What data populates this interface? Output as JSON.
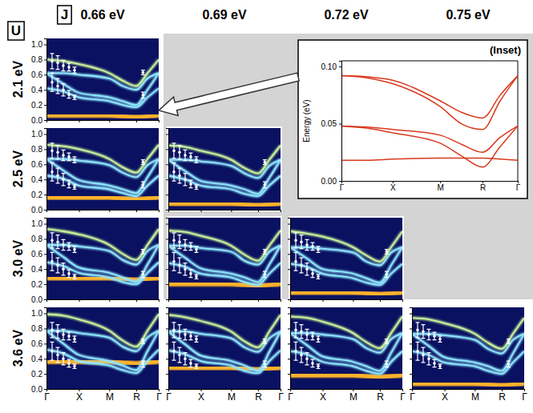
{
  "chart_data": {
    "type": "panel_grid",
    "column_title": "J",
    "row_title": "U",
    "columns": [
      "0.66 eV",
      "0.69 eV",
      "0.72 eV",
      "0.75 eV"
    ],
    "x": [
      0,
      0.15,
      0.29,
      0.56,
      0.68,
      0.8,
      0.9,
      1.0
    ],
    "xlim": [
      0,
      1
    ],
    "xticks": [
      {
        "value": 0,
        "label": "Γ"
      },
      {
        "value": 0.29,
        "label": "X"
      },
      {
        "value": 0.56,
        "label": "M"
      },
      {
        "value": 0.8,
        "label": "R"
      },
      {
        "value": 1,
        "label": "Γ"
      }
    ],
    "ylim": [
      0,
      1.08
    ],
    "yticks": [
      {
        "value": 0,
        "label": "0.0"
      },
      {
        "value": 0.2,
        "label": "0.2"
      },
      {
        "value": 0.4,
        "label": "0.4"
      },
      {
        "value": 0.6,
        "label": "0.6"
      },
      {
        "value": 0.8,
        "label": "0.8"
      },
      {
        "value": 1,
        "label": "1.0"
      }
    ],
    "experiment": {
      "color": "#ffffff",
      "marker": "circle",
      "x": [
        0.05,
        0.05,
        0.1,
        0.1,
        0.15,
        0.15,
        0.2,
        0.2,
        0.25,
        0.25,
        0.86,
        0.86
      ],
      "values": [
        0.78,
        0.5,
        0.76,
        0.45,
        0.72,
        0.4,
        0.7,
        0.34,
        0.66,
        0.3,
        0.63,
        0.33
      ],
      "errors": [
        0.1,
        0.12,
        0.09,
        0.1,
        0.07,
        0.08,
        0.05,
        0.05,
        0.04,
        0.03,
        0.03,
        0.04
      ]
    },
    "rows": [
      {
        "label": "2.1 eV",
        "panels": [
          {
            "series": [
              {
                "color": "#ffb229",
                "values": [
                  0.06,
                  0.06,
                  0.06,
                  0.06,
                  0.05,
                  0.04,
                  0.05,
                  0.06
                ]
              },
              {
                "color": "#8fe6ff",
                "values": [
                  0.42,
                  0.38,
                  0.3,
                  0.25,
                  0.2,
                  0.17,
                  0.3,
                  0.42
                ]
              },
              {
                "color": "#8fe6ff",
                "values": [
                  0.62,
                  0.48,
                  0.36,
                  0.3,
                  0.25,
                  0.2,
                  0.4,
                  0.62
                ]
              },
              {
                "color": "#8fe6ff",
                "values": [
                  0.62,
                  0.62,
                  0.6,
                  0.55,
                  0.45,
                  0.4,
                  0.55,
                  0.62
                ]
              },
              {
                "color": "#c8f29a",
                "values": [
                  0.8,
                  0.78,
                  0.74,
                  0.62,
                  0.52,
                  0.45,
                  0.62,
                  0.8
                ]
              }
            ]
          }
        ]
      },
      {
        "label": "2.5 eV",
        "panels": [
          {
            "series": [
              {
                "color": "#ffb229",
                "values": [
                  0.16,
                  0.16,
                  0.16,
                  0.16,
                  0.15,
                  0.14,
                  0.15,
                  0.16
                ]
              },
              {
                "color": "#8fe6ff",
                "values": [
                  0.45,
                  0.41,
                  0.32,
                  0.27,
                  0.22,
                  0.18,
                  0.32,
                  0.45
                ]
              },
              {
                "color": "#8fe6ff",
                "values": [
                  0.67,
                  0.52,
                  0.39,
                  0.32,
                  0.27,
                  0.22,
                  0.43,
                  0.67
                ]
              },
              {
                "color": "#8fe6ff",
                "values": [
                  0.67,
                  0.67,
                  0.65,
                  0.59,
                  0.49,
                  0.43,
                  0.59,
                  0.67
                ]
              },
              {
                "color": "#c8f29a",
                "values": [
                  0.86,
                  0.84,
                  0.8,
                  0.67,
                  0.56,
                  0.49,
                  0.67,
                  0.86
                ]
              }
            ]
          },
          {
            "series": [
              {
                "color": "#ffb229",
                "values": [
                  0.08,
                  0.08,
                  0.08,
                  0.08,
                  0.07,
                  0.06,
                  0.07,
                  0.08
                ]
              },
              {
                "color": "#8fe6ff",
                "values": [
                  0.45,
                  0.4,
                  0.32,
                  0.27,
                  0.21,
                  0.18,
                  0.32,
                  0.45
                ]
              },
              {
                "color": "#8fe6ff",
                "values": [
                  0.66,
                  0.51,
                  0.38,
                  0.32,
                  0.27,
                  0.21,
                  0.42,
                  0.66
                ]
              },
              {
                "color": "#8fe6ff",
                "values": [
                  0.66,
                  0.66,
                  0.64,
                  0.58,
                  0.48,
                  0.42,
                  0.58,
                  0.66
                ]
              },
              {
                "color": "#c8f29a",
                "values": [
                  0.85,
                  0.83,
                  0.78,
                  0.66,
                  0.55,
                  0.48,
                  0.66,
                  0.85
                ]
              }
            ]
          }
        ]
      },
      {
        "label": "3.0 eV",
        "panels": [
          {
            "series": [
              {
                "color": "#ffb229",
                "values": [
                  0.28,
                  0.28,
                  0.28,
                  0.28,
                  0.27,
                  0.26,
                  0.27,
                  0.28
                ]
              },
              {
                "color": "#8fe6ff",
                "values": [
                  0.49,
                  0.44,
                  0.35,
                  0.29,
                  0.23,
                  0.2,
                  0.35,
                  0.49
                ]
              },
              {
                "color": "#8fe6ff",
                "values": [
                  0.72,
                  0.56,
                  0.42,
                  0.35,
                  0.29,
                  0.23,
                  0.46,
                  0.72
                ]
              },
              {
                "color": "#8fe6ff",
                "values": [
                  0.72,
                  0.72,
                  0.7,
                  0.64,
                  0.52,
                  0.46,
                  0.64,
                  0.72
                ]
              },
              {
                "color": "#c8f29a",
                "values": [
                  0.93,
                  0.9,
                  0.86,
                  0.72,
                  0.6,
                  0.52,
                  0.72,
                  0.93
                ]
              }
            ]
          },
          {
            "series": [
              {
                "color": "#ffb229",
                "values": [
                  0.2,
                  0.2,
                  0.2,
                  0.2,
                  0.19,
                  0.18,
                  0.19,
                  0.2
                ]
              },
              {
                "color": "#8fe6ff",
                "values": [
                  0.48,
                  0.43,
                  0.34,
                  0.29,
                  0.23,
                  0.19,
                  0.34,
                  0.48
                ]
              },
              {
                "color": "#8fe6ff",
                "values": [
                  0.71,
                  0.55,
                  0.41,
                  0.34,
                  0.29,
                  0.23,
                  0.46,
                  0.71
                ]
              },
              {
                "color": "#8fe6ff",
                "values": [
                  0.71,
                  0.71,
                  0.68,
                  0.63,
                  0.51,
                  0.46,
                  0.63,
                  0.71
                ]
              },
              {
                "color": "#c8f29a",
                "values": [
                  0.91,
                  0.89,
                  0.84,
                  0.71,
                  0.59,
                  0.51,
                  0.71,
                  0.91
                ]
              }
            ]
          },
          {
            "series": [
              {
                "color": "#ffb229",
                "values": [
                  0.09,
                  0.09,
                  0.09,
                  0.09,
                  0.08,
                  0.07,
                  0.08,
                  0.09
                ]
              },
              {
                "color": "#8fe6ff",
                "values": [
                  0.47,
                  0.43,
                  0.34,
                  0.28,
                  0.22,
                  0.19,
                  0.34,
                  0.47
                ]
              },
              {
                "color": "#8fe6ff",
                "values": [
                  0.69,
                  0.54,
                  0.4,
                  0.34,
                  0.28,
                  0.22,
                  0.45,
                  0.69
                ]
              },
              {
                "color": "#8fe6ff",
                "values": [
                  0.69,
                  0.69,
                  0.67,
                  0.62,
                  0.5,
                  0.45,
                  0.62,
                  0.69
                ]
              },
              {
                "color": "#c8f29a",
                "values": [
                  0.9,
                  0.87,
                  0.83,
                  0.69,
                  0.58,
                  0.5,
                  0.69,
                  0.9
                ]
              }
            ]
          }
        ]
      },
      {
        "label": "3.6 eV",
        "panels": [
          {
            "series": [
              {
                "color": "#ffb229",
                "values": [
                  0.36,
                  0.36,
                  0.36,
                  0.36,
                  0.35,
                  0.34,
                  0.35,
                  0.36
                ]
              },
              {
                "color": "#8fe6ff",
                "values": [
                  0.52,
                  0.47,
                  0.37,
                  0.31,
                  0.25,
                  0.21,
                  0.37,
                  0.52
                ]
              },
              {
                "color": "#8fe6ff",
                "values": [
                  0.77,
                  0.6,
                  0.45,
                  0.37,
                  0.31,
                  0.25,
                  0.5,
                  0.77
                ]
              },
              {
                "color": "#8fe6ff",
                "values": [
                  0.77,
                  0.77,
                  0.74,
                  0.68,
                  0.56,
                  0.5,
                  0.68,
                  0.77
                ]
              },
              {
                "color": "#c8f29a",
                "values": [
                  0.99,
                  0.97,
                  0.92,
                  0.77,
                  0.64,
                  0.56,
                  0.77,
                  0.99
                ]
              }
            ]
          },
          {
            "series": [
              {
                "color": "#ffb229",
                "values": [
                  0.28,
                  0.28,
                  0.28,
                  0.28,
                  0.27,
                  0.26,
                  0.27,
                  0.28
                ]
              },
              {
                "color": "#8fe6ff",
                "values": [
                  0.51,
                  0.46,
                  0.37,
                  0.31,
                  0.24,
                  0.21,
                  0.37,
                  0.51
                ]
              },
              {
                "color": "#8fe6ff",
                "values": [
                  0.76,
                  0.59,
                  0.44,
                  0.37,
                  0.31,
                  0.24,
                  0.49,
                  0.76
                ]
              },
              {
                "color": "#8fe6ff",
                "values": [
                  0.76,
                  0.76,
                  0.73,
                  0.67,
                  0.55,
                  0.49,
                  0.67,
                  0.76
                ]
              },
              {
                "color": "#c8f29a",
                "values": [
                  0.98,
                  0.95,
                  0.9,
                  0.76,
                  0.63,
                  0.55,
                  0.76,
                  0.98
                ]
              }
            ]
          },
          {
            "series": [
              {
                "color": "#ffb229",
                "values": [
                  0.18,
                  0.18,
                  0.18,
                  0.18,
                  0.17,
                  0.16,
                  0.17,
                  0.18
                ]
              },
              {
                "color": "#8fe6ff",
                "values": [
                  0.5,
                  0.46,
                  0.36,
                  0.3,
                  0.24,
                  0.2,
                  0.36,
                  0.5
                ]
              },
              {
                "color": "#8fe6ff",
                "values": [
                  0.74,
                  0.58,
                  0.43,
                  0.36,
                  0.3,
                  0.24,
                  0.48,
                  0.74
                ]
              },
              {
                "color": "#8fe6ff",
                "values": [
                  0.74,
                  0.74,
                  0.72,
                  0.66,
                  0.54,
                  0.48,
                  0.66,
                  0.74
                ]
              },
              {
                "color": "#c8f29a",
                "values": [
                  0.96,
                  0.94,
                  0.89,
                  0.74,
                  0.62,
                  0.54,
                  0.74,
                  0.96
                ]
              }
            ]
          },
          {
            "series": [
              {
                "color": "#ffb229",
                "values": [
                  0.07,
                  0.07,
                  0.07,
                  0.07,
                  0.06,
                  0.05,
                  0.06,
                  0.07
                ]
              },
              {
                "color": "#8fe6ff",
                "values": [
                  0.5,
                  0.45,
                  0.35,
                  0.3,
                  0.24,
                  0.2,
                  0.35,
                  0.5
                ]
              },
              {
                "color": "#8fe6ff",
                "values": [
                  0.73,
                  0.57,
                  0.42,
                  0.35,
                  0.3,
                  0.24,
                  0.47,
                  0.73
                ]
              },
              {
                "color": "#8fe6ff",
                "values": [
                  0.73,
                  0.73,
                  0.71,
                  0.65,
                  0.53,
                  0.47,
                  0.65,
                  0.73
                ]
              },
              {
                "color": "#c8f29a",
                "values": [
                  0.94,
                  0.92,
                  0.87,
                  0.73,
                  0.61,
                  0.53,
                  0.73,
                  0.94
                ]
              }
            ]
          }
        ]
      }
    ],
    "inset": {
      "type": "line",
      "title": "(Inset)",
      "y_label": "Energy (eV)",
      "color": "#d8391c",
      "x": [
        0,
        0.15,
        0.29,
        0.56,
        0.68,
        0.8,
        0.9,
        1.0
      ],
      "xlim": [
        0,
        1
      ],
      "xticks": [
        {
          "value": 0,
          "label": "Γ"
        },
        {
          "value": 0.29,
          "label": "X"
        },
        {
          "value": 0.56,
          "label": "M"
        },
        {
          "value": 0.8,
          "label": "R"
        },
        {
          "value": 1,
          "label": "Γ"
        }
      ],
      "ylim": [
        0,
        0.105
      ],
      "yticks": [
        {
          "value": 0,
          "label": "0.00"
        },
        {
          "value": 0.05,
          "label": "0.05"
        },
        {
          "value": 0.1,
          "label": "0.10"
        }
      ],
      "series": [
        {
          "values": [
            0.092,
            0.091,
            0.088,
            0.07,
            0.06,
            0.055,
            0.075,
            0.092
          ]
        },
        {
          "values": [
            0.092,
            0.09,
            0.085,
            0.065,
            0.05,
            0.045,
            0.07,
            0.092
          ]
        },
        {
          "values": [
            0.048,
            0.047,
            0.045,
            0.04,
            0.032,
            0.025,
            0.038,
            0.048
          ]
        },
        {
          "values": [
            0.048,
            0.046,
            0.042,
            0.033,
            0.022,
            0.012,
            0.03,
            0.048
          ]
        },
        {
          "values": [
            0.018,
            0.018,
            0.019,
            0.02,
            0.02,
            0.02,
            0.019,
            0.018
          ]
        }
      ]
    }
  }
}
